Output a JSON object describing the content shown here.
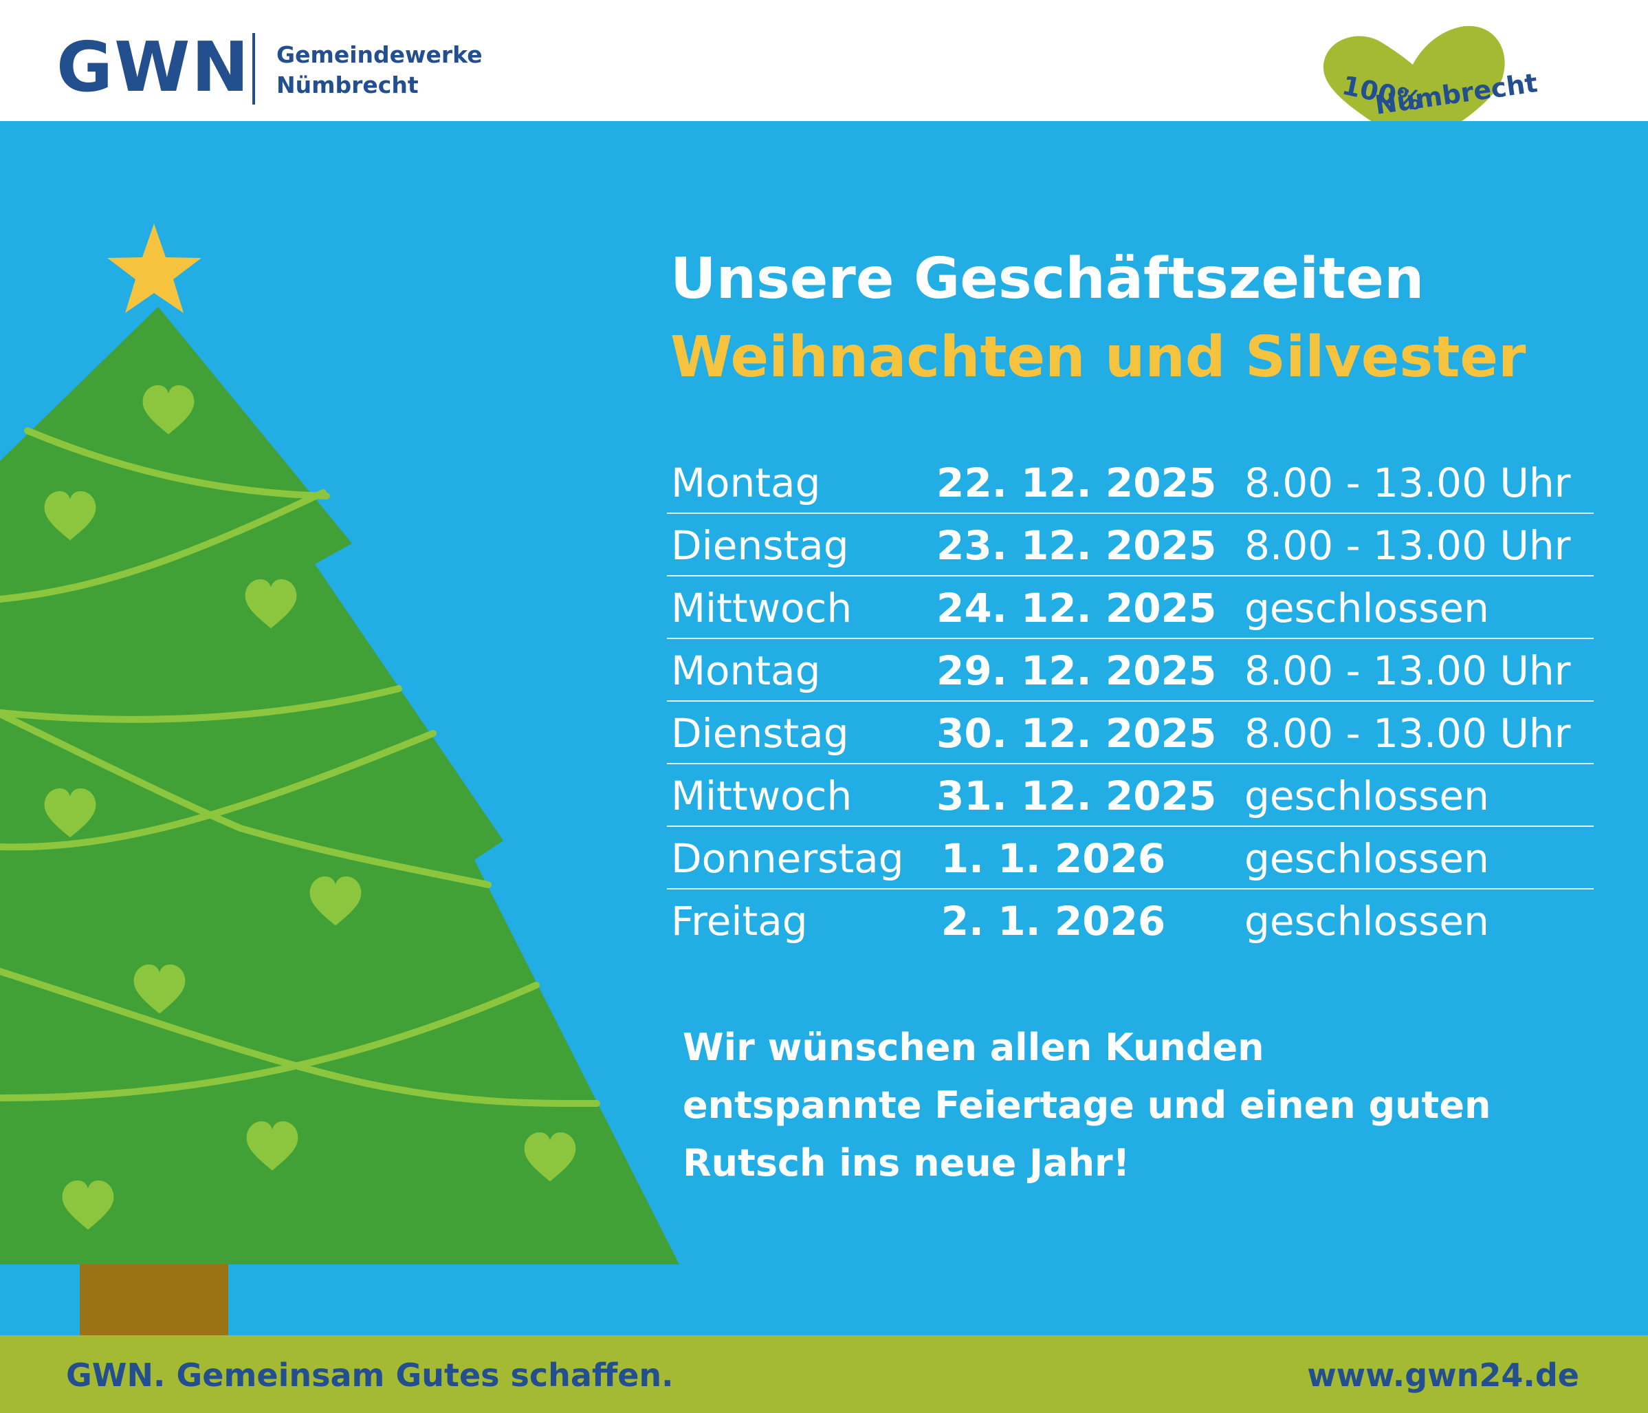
{
  "header": {
    "logo_text": "GWN",
    "company_line1": "Gemeindewerke",
    "company_line2": "Nümbrecht",
    "badge_line1": "100%",
    "badge_line2": "Nümbrecht"
  },
  "title": {
    "line1": "Unsere Geschäftszeiten",
    "line2": "Weihnachten und Silvester"
  },
  "schedule": [
    {
      "day": "Montag",
      "date": "22. 12. 2025",
      "hours": "8.00 - 13.00 Uhr"
    },
    {
      "day": "Dienstag",
      "date": "23. 12. 2025",
      "hours": "8.00 - 13.00 Uhr"
    },
    {
      "day": "Mittwoch",
      "date": "24. 12. 2025",
      "hours": "geschlossen"
    },
    {
      "day": "Montag",
      "date": "29. 12. 2025",
      "hours": "8.00 - 13.00 Uhr"
    },
    {
      "day": "Dienstag",
      "date": "30. 12. 2025",
      "hours": "8.00 - 13.00 Uhr"
    },
    {
      "day": "Mittwoch",
      "date": "31. 12. 2025",
      "hours": "geschlossen"
    },
    {
      "day": "Donnerstag",
      "date": "1. 1. 2026",
      "hours": "geschlossen"
    },
    {
      "day": "Freitag",
      "date": "2. 1. 2026",
      "hours": "geschlossen"
    }
  ],
  "greeting": {
    "line1": "Wir wünschen allen Kunden",
    "line2": "entspannte Feiertage und einen guten",
    "line3": "Rutsch ins neue Jahr!"
  },
  "footer": {
    "slogan": "GWN. Gemeinsam Gutes schaffen.",
    "url": "www.gwn24.de"
  },
  "colors": {
    "brand_blue": "#244f8f",
    "background_blue": "#22ade4",
    "accent_yellow": "#f5c33e",
    "lime_green": "#a5ba33",
    "tree_green": "#41a136",
    "heart_green": "#8cc63e",
    "trunk_brown": "#9a7317"
  },
  "icons": [
    "christmas-tree-icon",
    "star-icon",
    "heart-icon"
  ]
}
